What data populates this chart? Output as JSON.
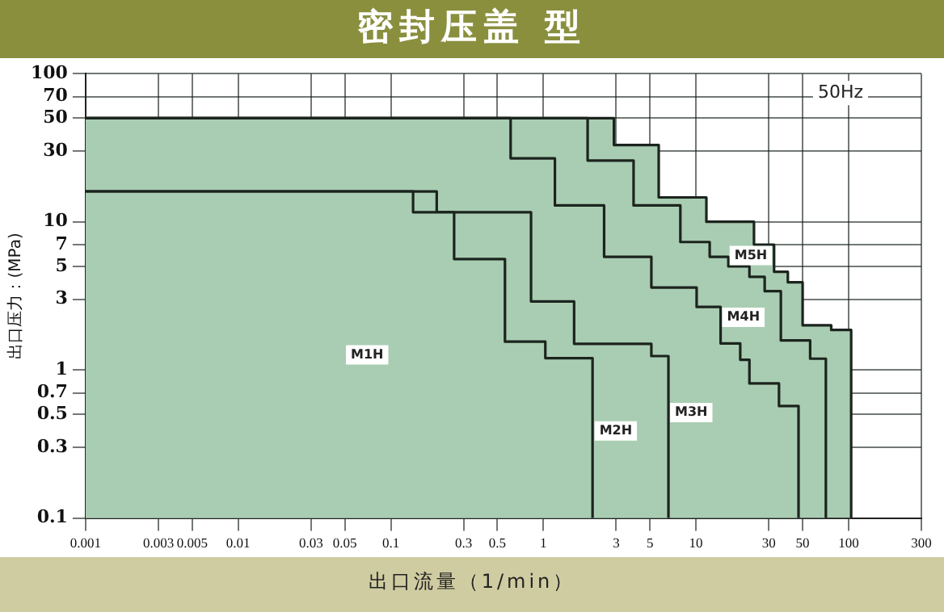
{
  "chart_data": {
    "type": "area",
    "title": "密封压盖 型",
    "xlabel": "出口流量（1/min）",
    "ylabel": "出口压力：(MPa)",
    "annotations": [
      "50Hz"
    ],
    "log": "xy",
    "grid": true,
    "legend": false,
    "marker": "none",
    "line_style": "solid",
    "xlim": [
      0.001,
      300
    ],
    "ylim": [
      0.1,
      100
    ],
    "xticks": [
      0.001,
      0.003,
      0.005,
      0.01,
      0.03,
      0.05,
      0.1,
      0.3,
      0.5,
      1,
      3,
      5,
      10,
      30,
      50,
      100,
      300
    ],
    "yticks": [
      0.1,
      0.3,
      0.5,
      0.7,
      1,
      3,
      5,
      7,
      10,
      30,
      50,
      70,
      100
    ],
    "series": [
      {
        "name": "M1H",
        "color": "#a9cdb2",
        "x": [
          0.001,
          0.14,
          0.14,
          0.26,
          0.26,
          0.56,
          0.56,
          1.03,
          1.03,
          2.1,
          2.1
        ],
        "values": [
          16,
          16,
          11.6,
          11.6,
          5.6,
          5.6,
          1.55,
          1.55,
          1.2,
          1.2,
          0.1
        ]
      },
      {
        "name": "M2H",
        "color": "#a9cdb2",
        "x": [
          0.001,
          0.2,
          0.2,
          0.83,
          0.83,
          1.59,
          1.59,
          5.1,
          5.1,
          6.6,
          6.6
        ],
        "values": [
          16,
          16,
          11.6,
          11.6,
          2.9,
          2.9,
          1.5,
          1.5,
          1.24,
          1.24,
          0.1
        ]
      },
      {
        "name": "M3H",
        "color": "#a9cdb2",
        "x": [
          0.001,
          0.61,
          0.61,
          1.19,
          1.19,
          2.5,
          2.5,
          5.1,
          5.1,
          10.1,
          10.1,
          14.5,
          14.5,
          19.5,
          19.5,
          22.4,
          22.4,
          35,
          35,
          47,
          47
        ],
        "values": [
          50,
          50,
          26.8,
          26.8,
          12.9,
          12.9,
          5.8,
          5.8,
          3.6,
          3.6,
          2.66,
          2.66,
          1.51,
          1.51,
          1.17,
          1.17,
          0.81,
          0.81,
          0.57,
          0.57,
          0.1
        ]
      },
      {
        "name": "M4H",
        "color": "#a9cdb2",
        "x": [
          0.001,
          1.95,
          1.95,
          3.9,
          3.9,
          7.9,
          7.9,
          12.3,
          12.3,
          16.3,
          16.3,
          22.4,
          22.4,
          28.2,
          28.2,
          36,
          36,
          56,
          56,
          71,
          71
        ],
        "values": [
          50,
          50,
          25.9,
          25.9,
          12.9,
          12.9,
          7.3,
          7.3,
          5.8,
          5.8,
          5,
          5,
          4.25,
          4.25,
          3.4,
          3.4,
          1.58,
          1.58,
          1.19,
          1.19,
          0.1
        ]
      },
      {
        "name": "M5H",
        "color": "#a9cdb2",
        "x": [
          0.001,
          2.9,
          2.9,
          5.7,
          5.7,
          11.7,
          11.7,
          24,
          24,
          32.5,
          32.5,
          40,
          40,
          50,
          50,
          77,
          77,
          104,
          104
        ],
        "values": [
          50,
          50,
          33,
          33,
          14.6,
          14.6,
          10,
          10,
          7,
          7,
          4.6,
          4.6,
          3.9,
          3.9,
          2,
          2,
          1.86,
          1.86,
          0.1
        ]
      }
    ]
  }
}
